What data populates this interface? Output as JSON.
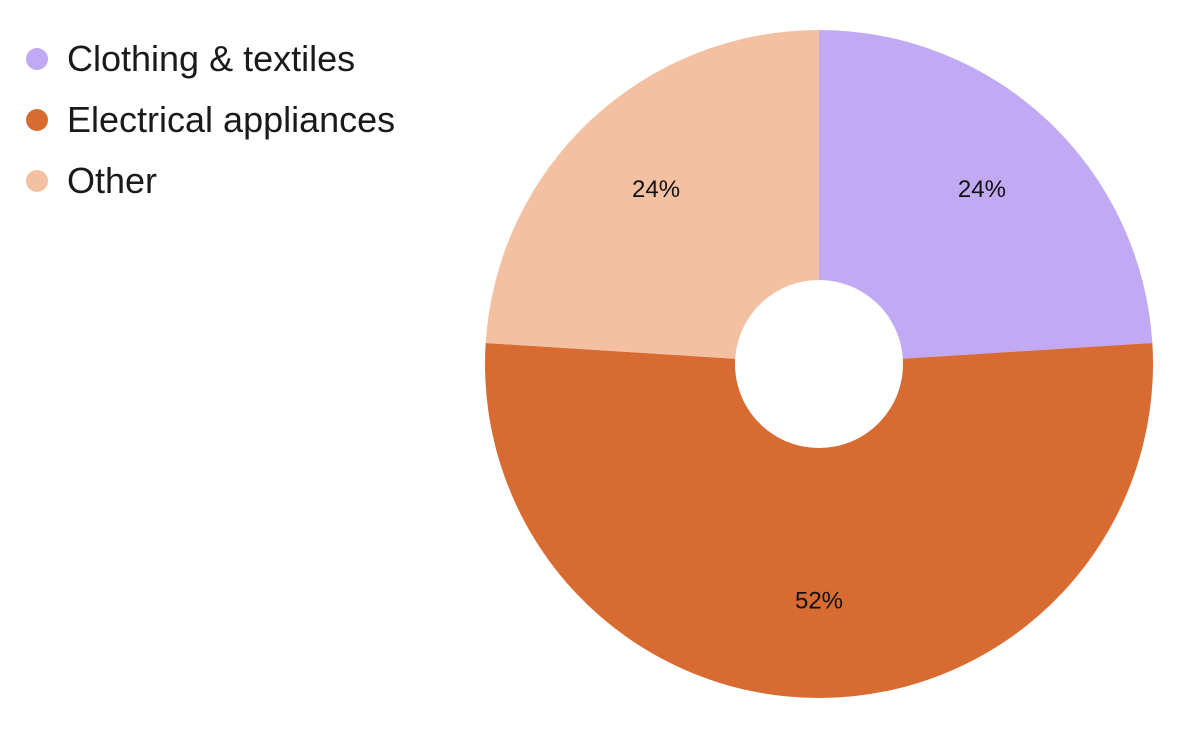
{
  "chart_data": {
    "type": "pie",
    "variant": "donut",
    "title": "",
    "categories": [
      "Clothing & textiles",
      "Electrical appliances",
      "Other"
    ],
    "values": [
      24,
      52,
      24
    ],
    "labels": [
      "24%",
      "52%",
      "24%"
    ],
    "colors": [
      "#c1a9f4",
      "#d86b31",
      "#f3c1a1"
    ],
    "legend": {
      "placement": "top-left",
      "items": [
        {
          "label": "Clothing & textiles",
          "color": "#c1a9f4"
        },
        {
          "label": "Electrical appliances",
          "color": "#d86b31"
        },
        {
          "label": "Other",
          "color": "#f3c1a1"
        }
      ]
    }
  }
}
